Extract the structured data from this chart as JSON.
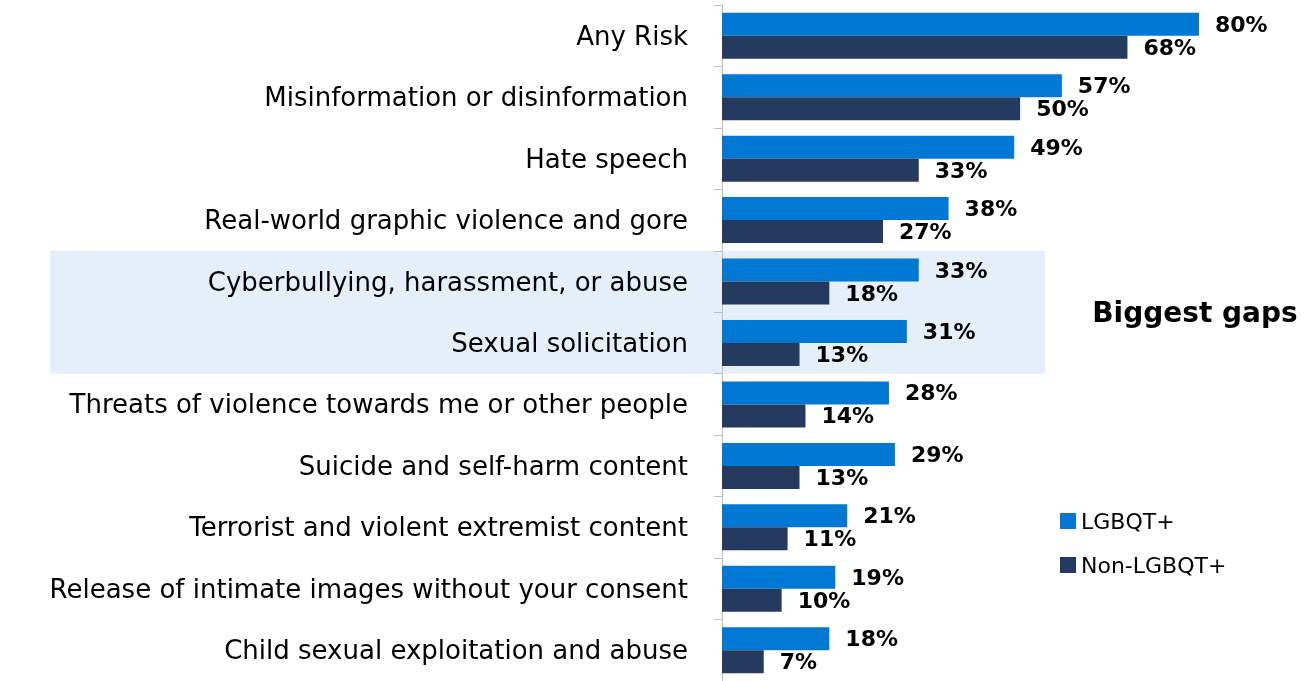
{
  "chart_data": {
    "type": "bar",
    "orientation": "horizontal",
    "categories": [
      "Any Risk",
      "Misinformation or disinformation",
      "Hate speech",
      "Real-world graphic violence and gore",
      "Cyberbullying, harassment, or abuse",
      "Sexual solicitation",
      "Threats of violence towards me or other people",
      "Suicide and self-harm content",
      "Terrorist and violent extremist content",
      "Release of intimate images without your consent",
      "Child sexual exploitation and abuse"
    ],
    "series": [
      {
        "name": "LGBQT+",
        "color": "#0078d4",
        "values": [
          80,
          57,
          49,
          38,
          33,
          31,
          28,
          29,
          21,
          19,
          18
        ],
        "value_labels": [
          "80%",
          "57%",
          "49%",
          "38%",
          "33%",
          "31%",
          "28%",
          "29%",
          "21%",
          "19%",
          "18%"
        ]
      },
      {
        "name": "Non-LGBQT+",
        "color": "#243a5e",
        "values": [
          68,
          50,
          33,
          27,
          18,
          13,
          14,
          13,
          11,
          10,
          7
        ],
        "value_labels": [
          "68%",
          "50%",
          "33%",
          "27%",
          "18%",
          "13%",
          "14%",
          "13%",
          "11%",
          "10%",
          "7%"
        ]
      }
    ],
    "bands": [
      {
        "axis": "y",
        "from": "Cyberbullying, harassment, or abuse",
        "to": "Sexual solicitation",
        "label": "Biggest gaps",
        "color": "#e5eff9"
      }
    ],
    "legend": "right",
    "grid": false
  }
}
